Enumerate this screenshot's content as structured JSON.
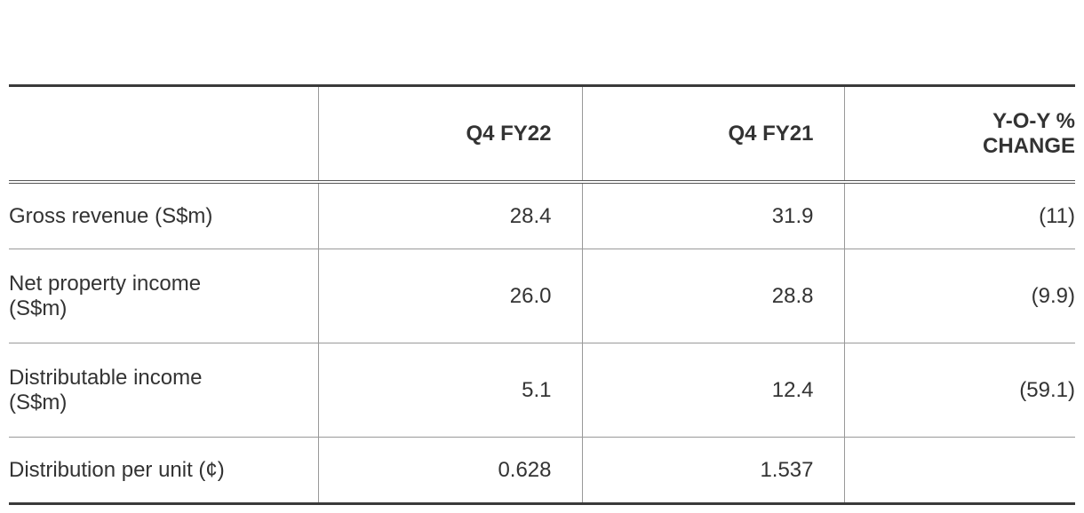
{
  "table": {
    "columns": [
      "Q4 FY22",
      "Q4 FY21",
      "Y-O-Y % CHANGE"
    ],
    "rows": [
      {
        "label": "Gross revenue (S$m)",
        "values": [
          "28.4",
          "31.9",
          "(11)"
        ]
      },
      {
        "label": "Net property income (S$m)",
        "values": [
          "26.0",
          "28.8",
          "(9.9)"
        ]
      },
      {
        "label": "Distributable income (S$m)",
        "values": [
          "5.1",
          "12.4",
          "(59.1)"
        ]
      },
      {
        "label": "Distribution per unit (¢)",
        "values": [
          "0.628",
          "1.537"
        ]
      }
    ]
  }
}
